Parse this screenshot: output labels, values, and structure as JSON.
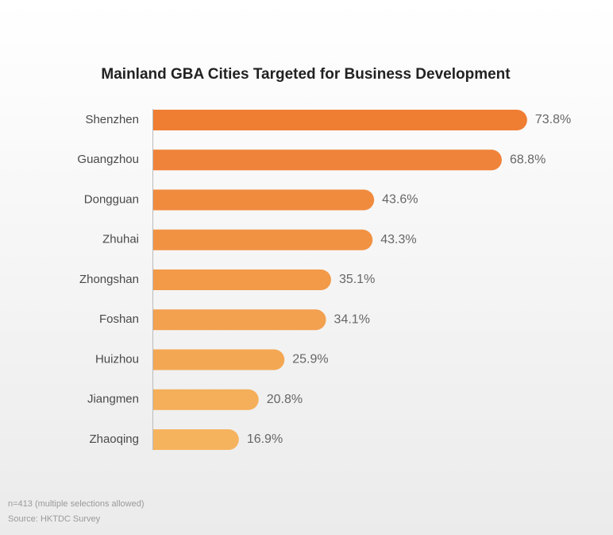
{
  "chart_data": {
    "type": "bar",
    "orientation": "horizontal",
    "title": "Mainland GBA Cities Targeted for Business Development",
    "categories": [
      "Shenzhen",
      "Guangzhou",
      "Dongguan",
      "Zhuhai",
      "Zhongshan",
      "Foshan",
      "Huizhou",
      "Jiangmen",
      "Zhaoqing"
    ],
    "values": [
      73.8,
      68.8,
      43.6,
      43.3,
      35.1,
      34.1,
      25.9,
      20.8,
      16.9
    ],
    "value_labels": [
      "73.8%",
      "68.8%",
      "43.6%",
      "43.3%",
      "35.1%",
      "34.1%",
      "25.9%",
      "20.8%",
      "16.9%"
    ],
    "colors": [
      "#ef7d32",
      "#f0833a",
      "#f08b3e",
      "#f19243",
      "#f29a48",
      "#f3a04f",
      "#f4a753",
      "#f5ae59",
      "#f6b35e"
    ],
    "notes": [
      "n=413 (multiple selections allowed)",
      "Source: HKTDC Survey"
    ]
  }
}
